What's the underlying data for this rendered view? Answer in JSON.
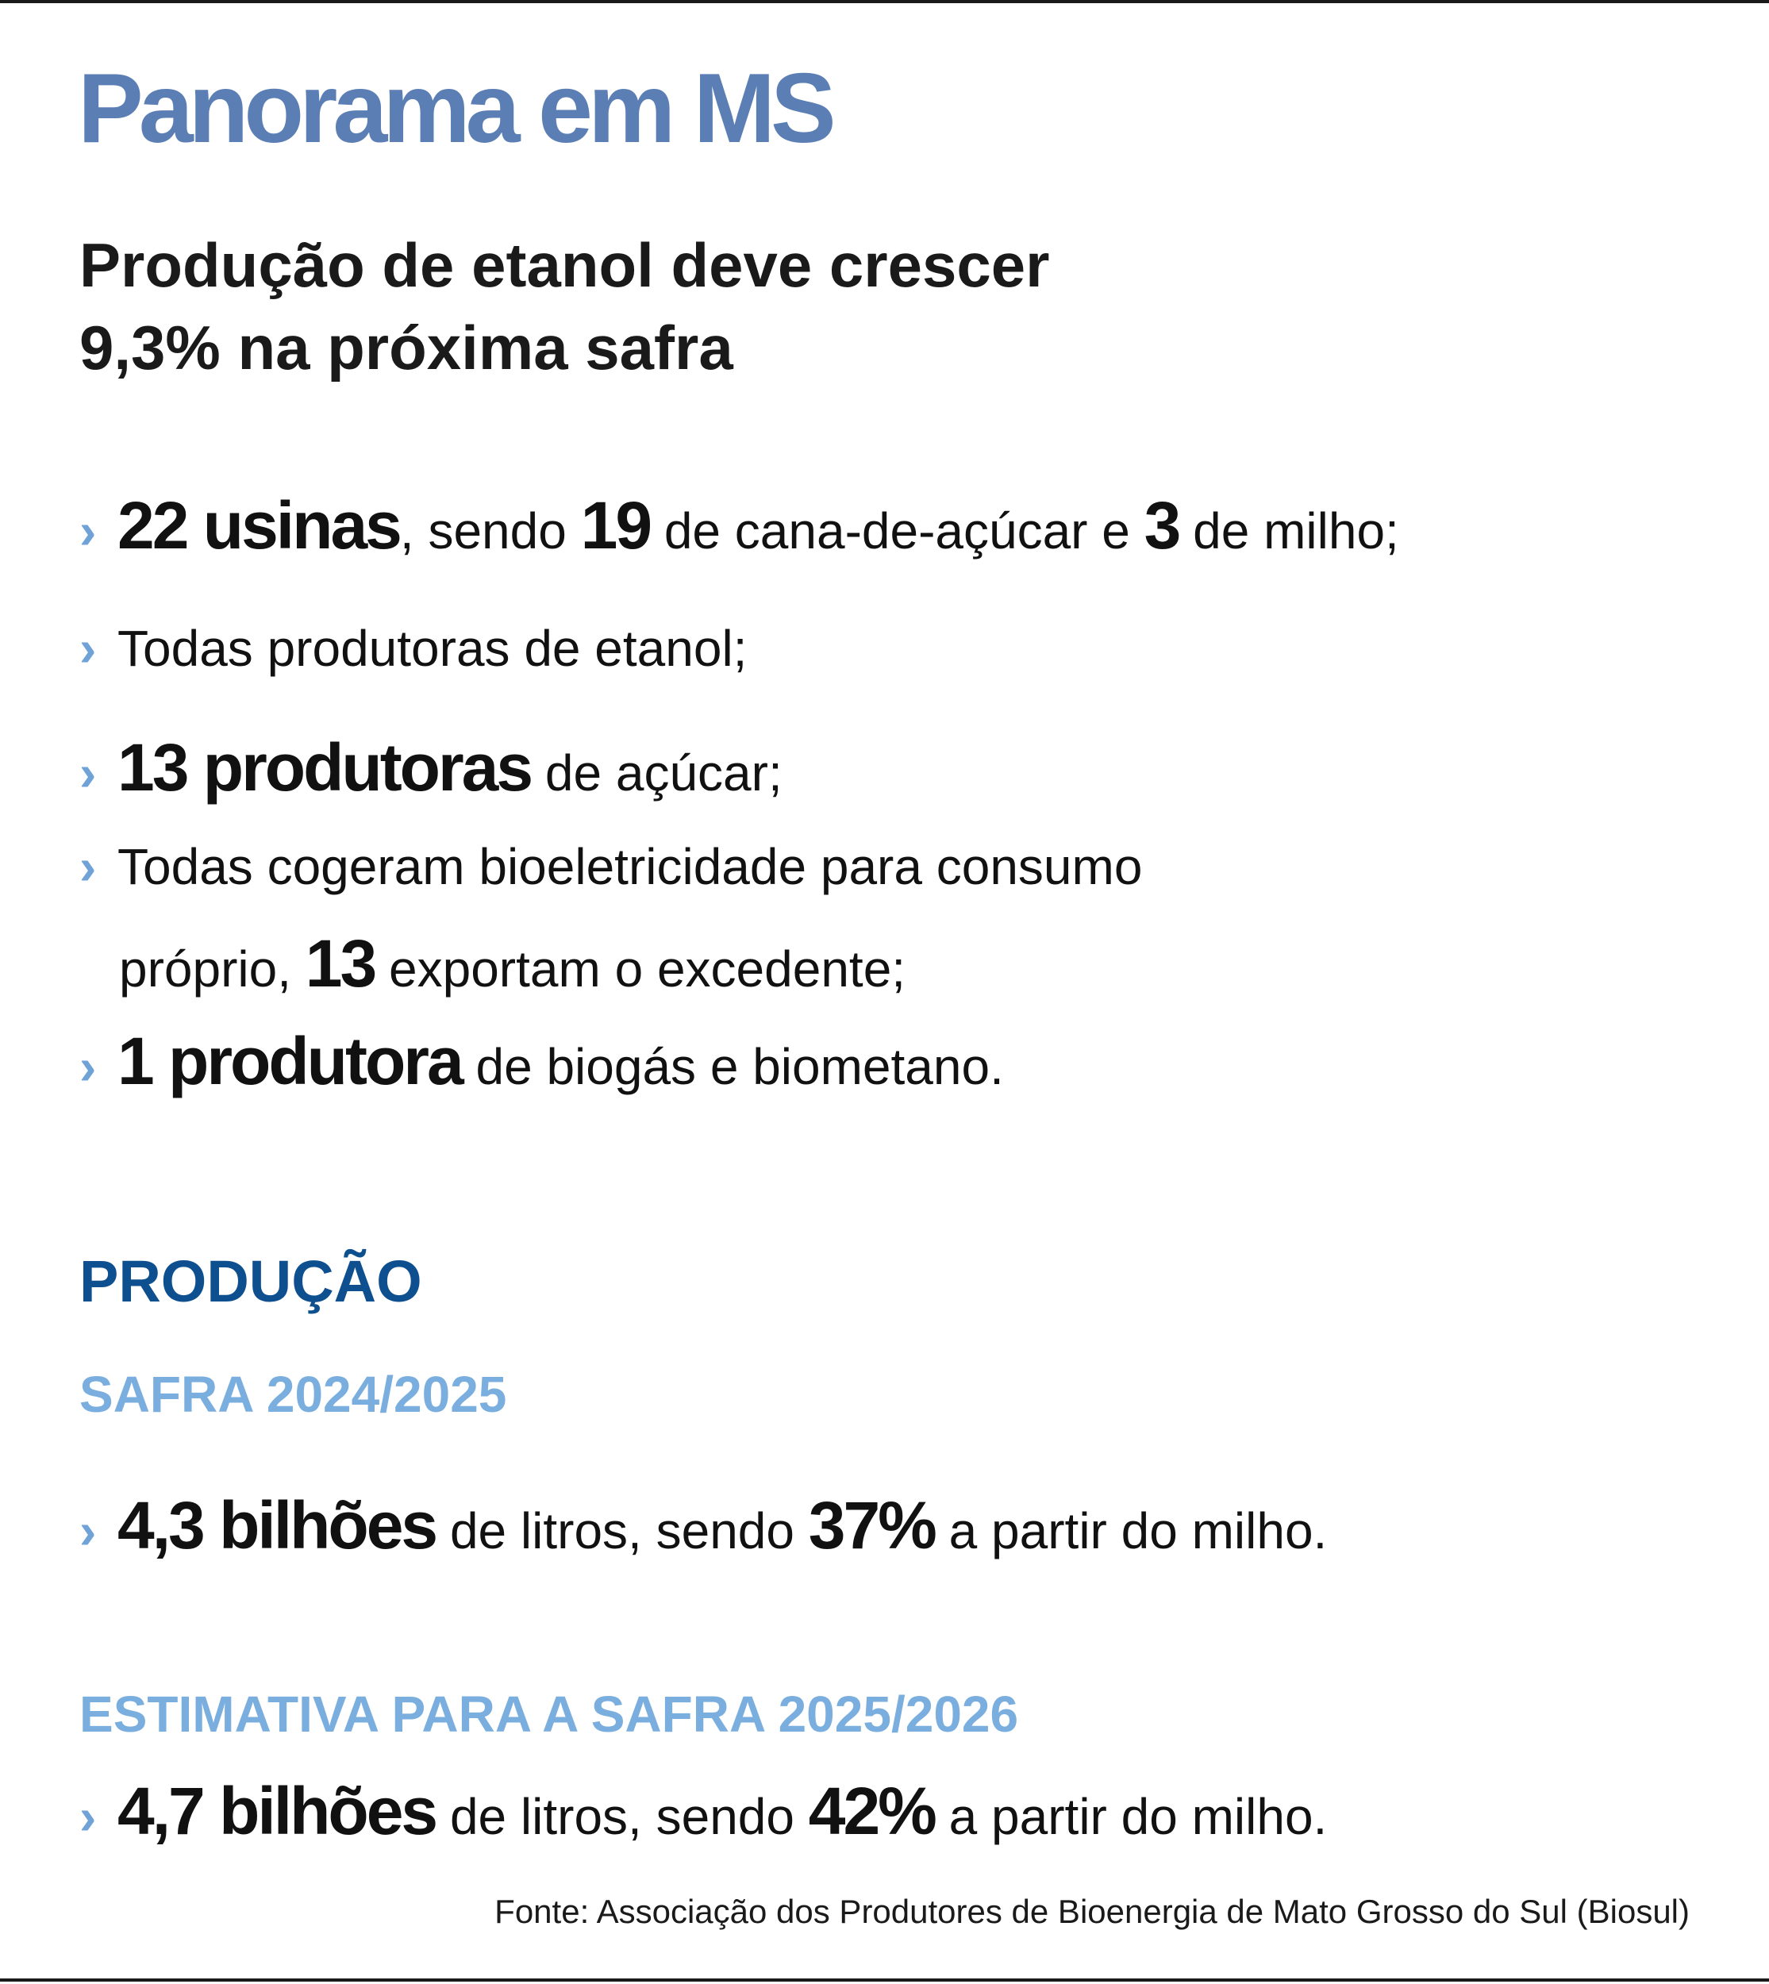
{
  "title": "Panorama em MS",
  "subtitle": {
    "line1": "Produção de etanol deve crescer",
    "line2": "9,3% na próxima safra"
  },
  "bullet_glyph": "›",
  "facts": [
    {
      "b1": "22 usinas",
      "t1": ", sendo ",
      "b2": "19",
      "t2": " de cana-de-açúcar e ",
      "b3": "3",
      "t3": " de milho;"
    },
    {
      "t1": "Todas produtoras de etanol;"
    },
    {
      "b1": "13 produtoras",
      "t1": " de açúcar;"
    },
    {
      "t1": "Todas cogeram bioeletricidade para consumo",
      "cont_t1": "próprio, ",
      "cont_b1": "13",
      "cont_t2": " exportam o excedente;"
    },
    {
      "b1": "1 produtora",
      "t1": " de biogás e biometano."
    }
  ],
  "production": {
    "heading": "PRODUÇÃO",
    "current": {
      "label": "SAFRA 2024/2025",
      "b1": "4,3 bilhões",
      "t1": " de litros, sendo ",
      "b2": "37%",
      "t2": " a partir do milho."
    },
    "estimate": {
      "label": "ESTIMATIVA PARA A SAFRA 2025/2026",
      "b1": "4,7 bilhões",
      "t1": " de litros, sendo ",
      "b2": "42%",
      "t2": " a partir do milho."
    }
  },
  "source": "Fonte: Associação dos Produtores de Bioenergia de Mato Grosso do Sul (Biosul)",
  "colors": {
    "title": "#5b7fb5",
    "section": "#0d4f8f",
    "subheading": "#7aaede",
    "bullet": "#6fa3d8"
  }
}
